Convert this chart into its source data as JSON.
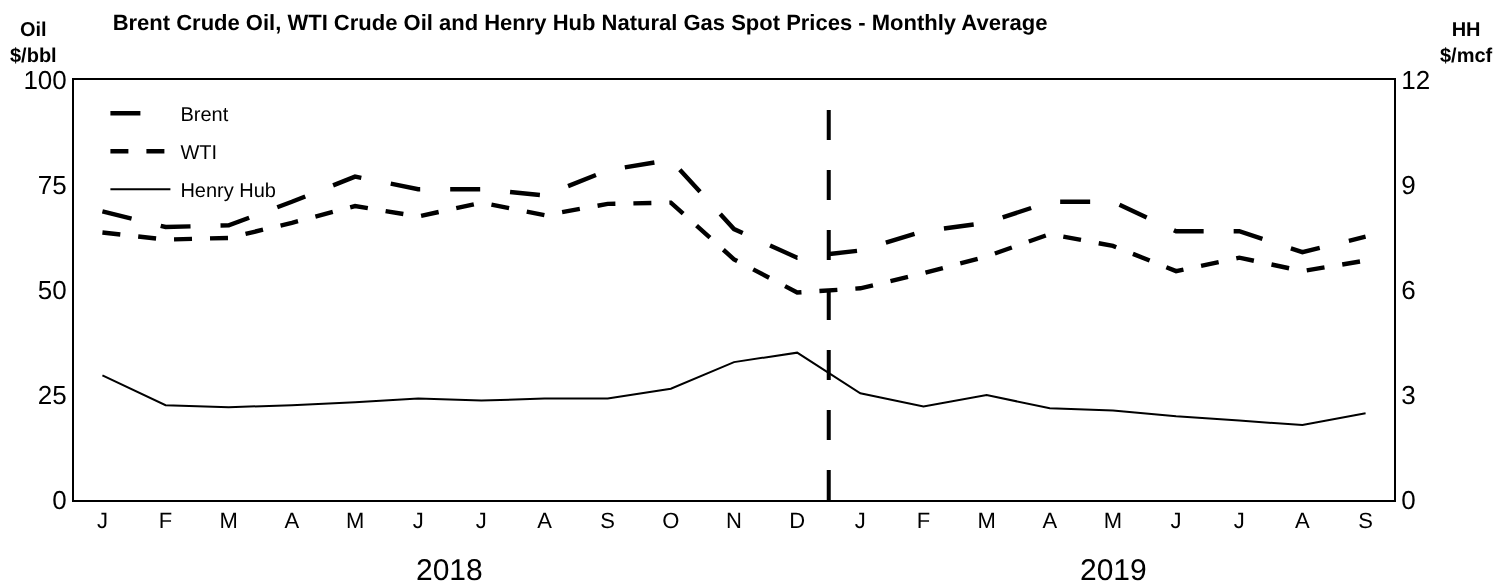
{
  "chart_data": {
    "type": "line",
    "title": "Brent Crude Oil, WTI Crude Oil and Henry Hub Natural Gas Spot Prices - Monthly Average",
    "ylabel": "Oil\n$/bbl",
    "y2label": "HH\n$/mcf",
    "categories": [
      "J",
      "F",
      "M",
      "A",
      "M",
      "J",
      "J",
      "A",
      "S",
      "O",
      "N",
      "D",
      "J",
      "F",
      "M",
      "A",
      "M",
      "J",
      "J",
      "A",
      "S"
    ],
    "ylim": [
      0,
      100
    ],
    "yticks": [
      0,
      25,
      50,
      75,
      100
    ],
    "y2lim": [
      0,
      12
    ],
    "y2ticks": [
      0,
      3,
      6,
      9,
      12
    ],
    "series": [
      {
        "name": "Brent",
        "color": "#000000",
        "line_style": "dashed",
        "values": [
          68.7,
          65,
          65.4,
          71,
          77,
          74,
          74,
          72.5,
          78.5,
          81,
          64.5,
          57.7,
          59.4,
          64,
          66,
          71,
          71,
          64,
          64,
          59,
          62.7
        ]
      },
      {
        "name": "WTI",
        "color": "#000000",
        "line_style": "dotted",
        "values": [
          63.7,
          62,
          62.4,
          66,
          70,
          67.5,
          70.8,
          67.8,
          70.5,
          70.8,
          57.3,
          49.4,
          50.4,
          54,
          58,
          63.3,
          60.5,
          54.5,
          57.7,
          54.5,
          57
        ]
      },
      {
        "name": "Henry Hub",
        "color": "#000000",
        "line_style": "solid",
        "axis": "y2",
        "values": [
          3.56,
          2.71,
          2.65,
          2.71,
          2.79,
          2.9,
          2.84,
          2.9,
          2.9,
          3.18,
          3.94,
          4.21,
          3.05,
          2.67,
          3.0,
          2.62,
          2.56,
          2.39,
          2.27,
          2.14,
          2.48
        ]
      }
    ],
    "annotations": [
      "2018",
      "2019"
    ],
    "legend": "top left",
    "marker": "none"
  }
}
